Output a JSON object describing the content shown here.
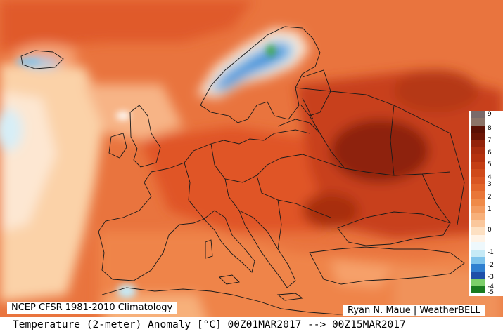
{
  "map": {
    "climatology_label": "NCEP CFSR 1981-2010 Climatology",
    "credit": "Ryan N. Maue | WeatherBELL",
    "title": "Temperature (2-meter) Anomaly  [°C] 00Z01MAR2017 --> 00Z15MAR2017"
  },
  "legend": {
    "ticks": [
      "9",
      "8",
      "7",
      "6",
      "5",
      "4",
      "3",
      "2",
      "1",
      "0",
      "-1",
      "-2",
      "-3",
      "-4",
      "-5"
    ],
    "colors": [
      "#7a6a6a",
      "#8c7468",
      "#6b1505",
      "#93230b",
      "#b5320f",
      "#cf4a1a",
      "#e2652a",
      "#ef8a48",
      "#f7b07a",
      "#fde0c2",
      "#ffffff",
      "#c6eaf6",
      "#7fc4ec",
      "#2f7fd0",
      "#1d4fa8",
      "#7ccf6a",
      "#39a83a",
      "#1a7a1f"
    ]
  },
  "colors": {
    "background_warm": "#e86a36",
    "hot_core": "#8a1c08",
    "cold_scandinavia": "#2f7fd0"
  }
}
